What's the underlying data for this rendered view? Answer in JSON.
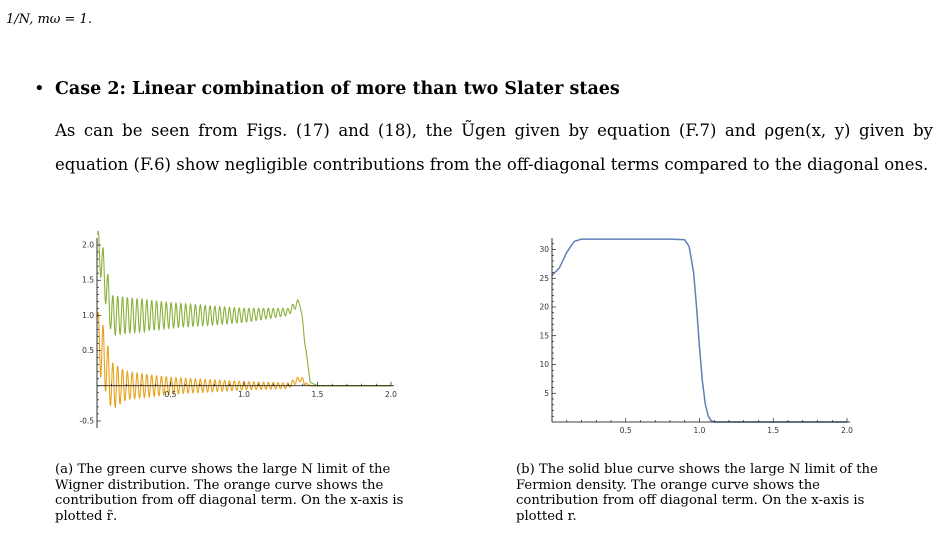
{
  "header": {
    "text": "1/N, mω = 1."
  },
  "section": {
    "bullet": "•",
    "title": "Case 2: Linear combination of more than two Slater staes",
    "paragraph": "As can be seen from Figs. (17) and (18), the Ũgen given by equation (F.7) and ρgen(x, y) given by equation (F.6) show negligible contributions from the off-diagonal terms compared to the diagonal ones."
  },
  "figures": {
    "a": {
      "caption": "(a) The green curve shows the large N limit of the Wigner distribution. The orange curve shows the contribution from off diagonal term. On the x-axis is plotted r̃."
    },
    "b": {
      "caption": "(b) The solid blue curve shows the large N limit of the Fermion density. The orange curve shows the contribution from off diagonal term. On the x-axis is plotted r."
    }
  },
  "colors": {
    "green": "#8AB13A",
    "orange": "#E8A21C",
    "blue": "#5E81B5",
    "axis": "#000000"
  },
  "chart_data": [
    {
      "type": "line",
      "xlim": [
        0,
        2.0
      ],
      "ylim": [
        -0.6,
        2.1
      ],
      "xticks": [
        "0.5",
        "1.0",
        "1.5",
        "2.0"
      ],
      "yticks": [
        "-0.5",
        "0.5",
        "1.0",
        "1.5",
        "2.0"
      ],
      "series": [
        {
          "color": "green",
          "envelope": [
            [
              0.02,
              1.9
            ],
            [
              0.1,
              1.0
            ],
            [
              0.2,
              1.0
            ],
            [
              0.5,
              1.0
            ],
            [
              1.0,
              1.0
            ],
            [
              1.3,
              1.05
            ],
            [
              1.38,
              1.2
            ],
            [
              1.45,
              0.05
            ],
            [
              1.5,
              0.0
            ],
            [
              2.0,
              0.0
            ]
          ],
          "oscillation_amplitude": [
            [
              0.05,
              0.3
            ],
            [
              0.5,
              0.18
            ],
            [
              1.0,
              0.1
            ],
            [
              1.3,
              0.05
            ]
          ]
        },
        {
          "color": "orange",
          "envelope": [
            [
              0.02,
              0.6
            ],
            [
              0.1,
              0.0
            ],
            [
              0.5,
              0.0
            ],
            [
              1.0,
              0.0
            ],
            [
              1.3,
              0.0
            ],
            [
              1.38,
              0.1
            ],
            [
              1.45,
              0.0
            ],
            [
              2.0,
              0.0
            ]
          ],
          "oscillation_amplitude": [
            [
              0.02,
              0.45
            ],
            [
              0.2,
              0.2
            ],
            [
              0.5,
              0.12
            ],
            [
              1.0,
              0.06
            ],
            [
              1.3,
              0.04
            ]
          ]
        }
      ]
    },
    {
      "type": "line",
      "xlim": [
        0,
        2.0
      ],
      "ylim": [
        0,
        32
      ],
      "xticks": [
        "0.5",
        "1.0",
        "1.5",
        "2.0"
      ],
      "yticks": [
        "5",
        "10",
        "15",
        "20",
        "25",
        "30"
      ],
      "series": [
        {
          "color": "blue",
          "points": [
            [
              0.0,
              25.5
            ],
            [
              0.05,
              26.8
            ],
            [
              0.1,
              29.5
            ],
            [
              0.15,
              31.4
            ],
            [
              0.2,
              31.8
            ],
            [
              0.4,
              31.8
            ],
            [
              0.6,
              31.8
            ],
            [
              0.8,
              31.8
            ],
            [
              0.9,
              31.7
            ],
            [
              0.93,
              30.5
            ],
            [
              0.96,
              26.0
            ],
            [
              0.98,
              20.0
            ],
            [
              1.0,
              13.0
            ],
            [
              1.02,
              7.0
            ],
            [
              1.04,
              3.0
            ],
            [
              1.06,
              1.0
            ],
            [
              1.08,
              0.2
            ],
            [
              1.1,
              0.0
            ],
            [
              1.5,
              0.0
            ],
            [
              2.0,
              0.0
            ]
          ]
        }
      ]
    }
  ]
}
